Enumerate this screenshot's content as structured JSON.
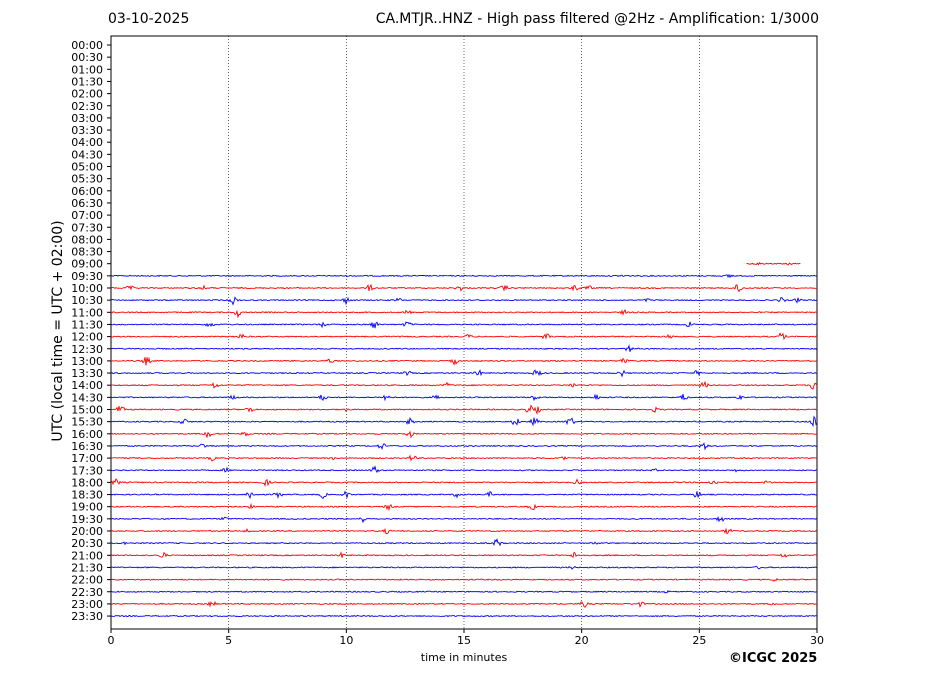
{
  "header": {
    "date": "03-10-2025",
    "title": "CA.MTJR..HNZ - High pass filtered @2Hz - Amplification: 1/3000"
  },
  "footer": {
    "copyright": "©ICGC 2025"
  },
  "chart_data": {
    "type": "line",
    "title": "CA.MTJR..HNZ - High pass filtered @2Hz - Amplification: 1/3000",
    "xlabel": "time in minutes",
    "ylabel": "UTC (local time = UTC + 02:00)",
    "xlim": [
      0,
      30
    ],
    "xticks": [
      0,
      5,
      10,
      15,
      20,
      25,
      30
    ],
    "grid": "vertical dotted lines at each x tick",
    "row_labels": [
      "00:00",
      "00:30",
      "01:00",
      "01:30",
      "02:00",
      "02:30",
      "03:00",
      "03:30",
      "04:00",
      "04:30",
      "05:00",
      "05:30",
      "06:00",
      "06:30",
      "07:00",
      "07:30",
      "08:00",
      "08:30",
      "09:00",
      "09:30",
      "10:00",
      "10:30",
      "11:00",
      "11:30",
      "12:00",
      "12:30",
      "13:00",
      "13:30",
      "14:00",
      "14:30",
      "15:00",
      "15:30",
      "16:00",
      "16:30",
      "17:00",
      "17:30",
      "18:00",
      "18:30",
      "19:00",
      "19:30",
      "20:00",
      "20:30",
      "21:00",
      "21:30",
      "22:00",
      "22:30",
      "23:00",
      "23:30"
    ],
    "colors": {
      "even_rows": "#ff0000",
      "odd_rows": "#0000ff"
    },
    "traces": [
      {
        "label": "09:00",
        "color": "#ff0000",
        "start": 27.0,
        "end": 29.3,
        "events": [
          [
            27.5,
            2
          ],
          [
            28.8,
            2
          ]
        ]
      },
      {
        "label": "09:30",
        "color": "#0000ff",
        "start": 0,
        "end": 30,
        "events": [
          [
            21.8,
            2
          ],
          [
            26.3,
            3
          ]
        ]
      },
      {
        "label": "10:00",
        "color": "#ff0000",
        "start": 0,
        "end": 30,
        "events": [
          [
            0.8,
            3
          ],
          [
            3.9,
            3
          ],
          [
            11.0,
            4
          ],
          [
            14.8,
            4
          ],
          [
            16.7,
            4
          ],
          [
            19.7,
            4
          ],
          [
            20.3,
            3
          ],
          [
            26.7,
            7
          ]
        ]
      },
      {
        "label": "10:30",
        "color": "#0000ff",
        "start": 0,
        "end": 30,
        "events": [
          [
            5.2,
            5
          ],
          [
            10.0,
            4
          ],
          [
            12.2,
            3
          ],
          [
            22.8,
            2
          ],
          [
            28.5,
            3
          ],
          [
            29.2,
            3
          ]
        ]
      },
      {
        "label": "11:00",
        "color": "#ff0000",
        "start": 0,
        "end": 30,
        "events": [
          [
            5.4,
            5
          ],
          [
            12.6,
            3
          ],
          [
            21.8,
            3
          ]
        ]
      },
      {
        "label": "11:30",
        "color": "#0000ff",
        "start": 0,
        "end": 30,
        "events": [
          [
            4.2,
            4
          ],
          [
            9.0,
            3
          ],
          [
            11.2,
            5
          ],
          [
            12.6,
            4
          ],
          [
            24.6,
            4
          ]
        ]
      },
      {
        "label": "12:00",
        "color": "#ff0000",
        "start": 0,
        "end": 30,
        "events": [
          [
            5.5,
            4
          ],
          [
            15.2,
            3
          ],
          [
            18.5,
            4
          ],
          [
            23.7,
            3
          ],
          [
            28.5,
            5
          ]
        ]
      },
      {
        "label": "12:30",
        "color": "#0000ff",
        "start": 0,
        "end": 30,
        "events": [
          [
            22.0,
            4
          ]
        ]
      },
      {
        "label": "13:00",
        "color": "#ff0000",
        "start": 0,
        "end": 30,
        "events": [
          [
            1.5,
            5
          ],
          [
            9.3,
            3
          ],
          [
            14.6,
            4
          ],
          [
            21.8,
            3
          ]
        ]
      },
      {
        "label": "13:30",
        "color": "#0000ff",
        "start": 0,
        "end": 30,
        "events": [
          [
            12.6,
            3
          ],
          [
            15.6,
            4
          ],
          [
            18.1,
            5
          ],
          [
            21.7,
            4
          ],
          [
            24.9,
            3
          ]
        ]
      },
      {
        "label": "14:00",
        "color": "#ff0000",
        "start": 0,
        "end": 30,
        "events": [
          [
            4.4,
            4
          ],
          [
            14.3,
            3
          ],
          [
            19.6,
            3
          ],
          [
            25.2,
            4
          ],
          [
            29.8,
            5
          ]
        ]
      },
      {
        "label": "14:30",
        "color": "#0000ff",
        "start": 0,
        "end": 30,
        "events": [
          [
            5.2,
            3
          ],
          [
            9.0,
            4
          ],
          [
            11.7,
            5
          ],
          [
            13.8,
            3
          ],
          [
            18.0,
            4
          ],
          [
            20.6,
            4
          ],
          [
            24.3,
            5
          ],
          [
            26.7,
            3
          ]
        ]
      },
      {
        "label": "15:00",
        "color": "#ff0000",
        "start": 0,
        "end": 30,
        "events": [
          [
            0.4,
            5
          ],
          [
            5.9,
            4
          ],
          [
            9.9,
            3
          ],
          [
            17.8,
            5
          ],
          [
            18.1,
            4
          ],
          [
            23.1,
            3
          ]
        ]
      },
      {
        "label": "15:30",
        "color": "#0000ff",
        "start": 0,
        "end": 30,
        "events": [
          [
            3.1,
            4
          ],
          [
            12.7,
            4
          ],
          [
            17.2,
            5
          ],
          [
            18.0,
            5
          ],
          [
            19.5,
            6
          ],
          [
            29.9,
            6
          ]
        ]
      },
      {
        "label": "16:00",
        "color": "#ff0000",
        "start": 0,
        "end": 30,
        "events": [
          [
            4.1,
            5
          ],
          [
            5.7,
            3
          ],
          [
            12.7,
            4
          ]
        ]
      },
      {
        "label": "16:30",
        "color": "#0000ff",
        "start": 0,
        "end": 30,
        "events": [
          [
            3.9,
            3
          ],
          [
            11.5,
            4
          ],
          [
            25.2,
            4
          ]
        ]
      },
      {
        "label": "17:00",
        "color": "#ff0000",
        "start": 0,
        "end": 30,
        "events": [
          [
            4.3,
            3
          ],
          [
            9.4,
            2
          ],
          [
            12.8,
            4
          ],
          [
            19.2,
            3
          ]
        ]
      },
      {
        "label": "17:30",
        "color": "#0000ff",
        "start": 0,
        "end": 30,
        "events": [
          [
            4.9,
            3
          ],
          [
            11.2,
            5
          ],
          [
            23.1,
            2
          ],
          [
            26.6,
            2
          ]
        ]
      },
      {
        "label": "18:00",
        "color": "#ff0000",
        "start": 0,
        "end": 30,
        "events": [
          [
            0.2,
            4
          ],
          [
            6.6,
            4
          ],
          [
            19.8,
            3
          ],
          [
            25.6,
            4
          ],
          [
            27.9,
            3
          ]
        ]
      },
      {
        "label": "18:30",
        "color": "#0000ff",
        "start": 0,
        "end": 30,
        "events": [
          [
            5.9,
            5
          ],
          [
            7.1,
            4
          ],
          [
            9.0,
            4
          ],
          [
            10.0,
            4
          ],
          [
            14.7,
            3
          ],
          [
            16.1,
            3
          ],
          [
            24.9,
            4
          ]
        ]
      },
      {
        "label": "19:00",
        "color": "#ff0000",
        "start": 0,
        "end": 30,
        "events": [
          [
            6.0,
            3
          ],
          [
            11.8,
            4
          ],
          [
            17.9,
            4
          ]
        ]
      },
      {
        "label": "19:30",
        "color": "#0000ff",
        "start": 0,
        "end": 30,
        "events": [
          [
            4.8,
            3
          ],
          [
            10.7,
            4
          ],
          [
            25.9,
            4
          ]
        ]
      },
      {
        "label": "20:00",
        "color": "#ff0000",
        "start": 0,
        "end": 30,
        "events": [
          [
            5.8,
            2
          ],
          [
            11.7,
            3
          ],
          [
            26.2,
            4
          ]
        ]
      },
      {
        "label": "20:30",
        "color": "#0000ff",
        "start": 0,
        "end": 30,
        "events": [
          [
            0.6,
            2
          ],
          [
            16.4,
            5
          ],
          [
            20.6,
            2
          ]
        ]
      },
      {
        "label": "21:00",
        "color": "#ff0000",
        "start": 0,
        "end": 30,
        "events": [
          [
            2.2,
            4
          ],
          [
            9.8,
            3
          ],
          [
            19.7,
            4
          ],
          [
            28.6,
            3
          ]
        ]
      },
      {
        "label": "21:30",
        "color": "#0000ff",
        "start": 0,
        "end": 30,
        "events": [
          [
            19.6,
            2
          ],
          [
            27.5,
            2
          ]
        ]
      },
      {
        "label": "22:00",
        "color": "#ff0000",
        "start": 0,
        "end": 30,
        "events": [
          [
            28.2,
            2
          ]
        ]
      },
      {
        "label": "22:30",
        "color": "#0000ff",
        "start": 0,
        "end": 30,
        "events": [
          [
            23.6,
            2
          ]
        ]
      },
      {
        "label": "23:00",
        "color": "#ff0000",
        "start": 0,
        "end": 30,
        "events": [
          [
            4.3,
            4
          ],
          [
            20.1,
            4
          ],
          [
            22.5,
            3
          ],
          [
            28.1,
            2
          ]
        ]
      },
      {
        "label": "23:30",
        "color": "#0000ff",
        "start": 0,
        "end": 30,
        "events": []
      }
    ]
  }
}
